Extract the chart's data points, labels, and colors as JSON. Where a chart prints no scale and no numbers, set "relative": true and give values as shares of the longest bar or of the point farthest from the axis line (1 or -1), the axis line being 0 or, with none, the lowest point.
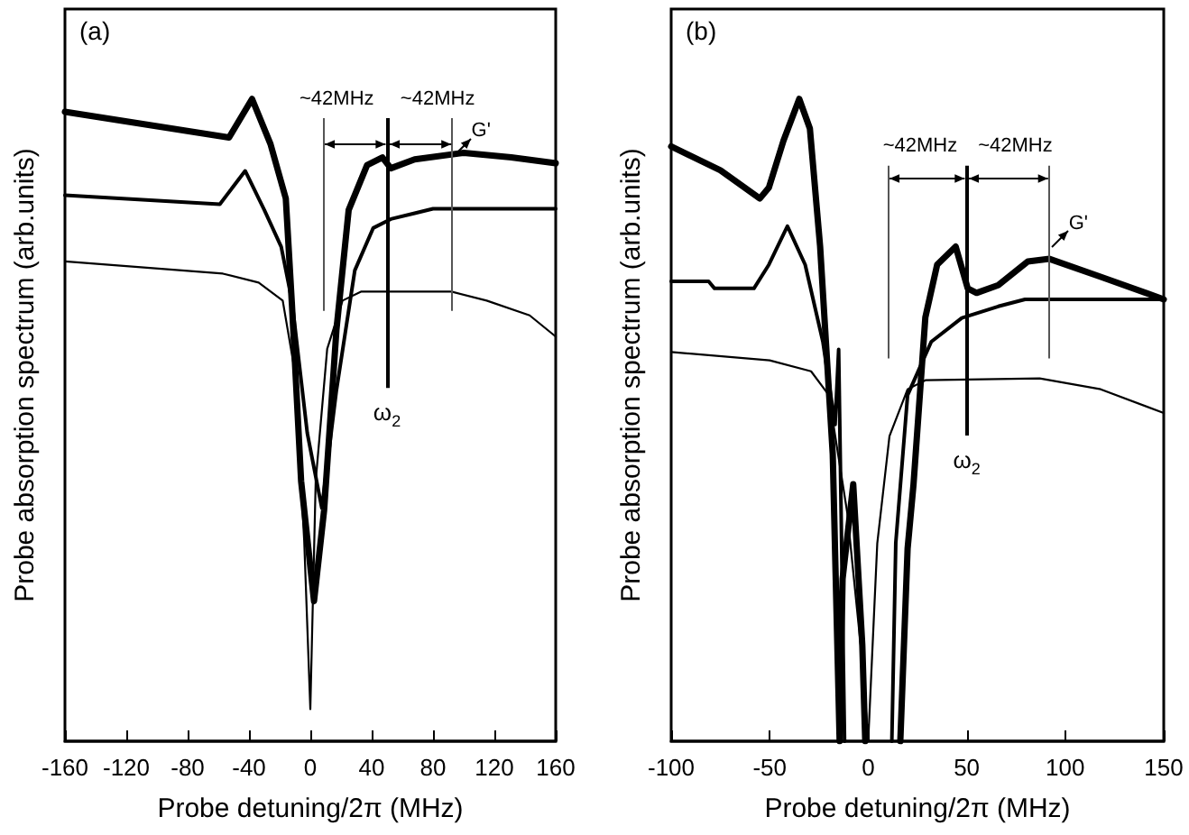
{
  "chart_data": [
    {
      "type": "line",
      "title": "(a)",
      "xlabel": "Probe detuning/2π (MHz)",
      "ylabel": "Probe absorption spectrum (arb.units)",
      "relative": true,
      "xlim": [
        -160,
        160
      ],
      "xticks": [
        -160,
        -120,
        -80,
        -40,
        0,
        40,
        80,
        120,
        160
      ],
      "grid": false,
      "marker": "none",
      "line_style": "solid",
      "series": [
        {
          "color": "#000000",
          "x": [
            -160,
            -53,
            -38,
            -26,
            -16,
            -12,
            -6,
            2.4,
            9,
            17,
            25,
            37,
            47,
            52.5,
            68,
            100,
            131,
            160
          ],
          "values": [
            0.98,
            0.94,
            1.0,
            0.93,
            0.845,
            0.68,
            0.405,
            0.218,
            0.36,
            0.64,
            0.827,
            0.897,
            0.909,
            0.892,
            0.906,
            0.916,
            0.909,
            0.9
          ]
        },
        {
          "color": "#000000",
          "x": [
            -160,
            -59,
            -42.5,
            -30,
            -19,
            -12,
            -2,
            7.5,
            17,
            29,
            41,
            52.5,
            68,
            80,
            160
          ],
          "values": [
            0.85,
            0.836,
            0.888,
            0.827,
            0.77,
            0.686,
            0.48,
            0.363,
            0.546,
            0.733,
            0.799,
            0.813,
            0.822,
            0.829,
            0.829
          ]
        },
        {
          "color": "#000000",
          "x": [
            -160,
            -57,
            -33.7,
            -18,
            -10,
            -4,
            0,
            3.5,
            11,
            21,
            33,
            92,
            115,
            143,
            160
          ],
          "values": [
            0.747,
            0.728,
            0.714,
            0.686,
            0.574,
            0.312,
            0.05,
            0.405,
            0.611,
            0.686,
            0.7,
            0.7,
            0.686,
            0.663,
            0.63
          ]
        }
      ],
      "ref_lines": [
        {
          "axis": "x",
          "value": 8,
          "label": null,
          "color": "#555555"
        },
        {
          "axis": "x",
          "value": 50,
          "label": "ω$_{2}$",
          "color": "#000000"
        },
        {
          "axis": "x",
          "value": 92.5,
          "label": null,
          "color": "#555555"
        }
      ],
      "annotations": [
        "~42MHz",
        "~42MHz",
        "G'"
      ]
    },
    {
      "type": "line",
      "title": "(b)",
      "xlabel": "Probe detuning/2π (MHz)",
      "ylabel": "Probe absorption spectrum (arb.units)",
      "relative": true,
      "xlim": [
        -100,
        150
      ],
      "xticks": [
        -100,
        -50,
        0,
        50,
        100,
        150
      ],
      "grid": false,
      "marker": "none",
      "line_style": "solid",
      "series": [
        {
          "color": "#000000",
          "x": [
            -100,
            -75,
            -55,
            -50.4,
            -43,
            -35,
            -29.6,
            -24.4,
            -18,
            -14.5,
            -13,
            -7.6,
            -3,
            -1.5,
            8,
            16.3,
            20,
            23,
            29,
            35,
            44.4,
            50.5,
            55,
            66,
            81,
            92,
            118,
            150
          ],
          "values": [
            0.926,
            0.889,
            0.845,
            0.862,
            0.935,
            1.0,
            0.954,
            0.77,
            0.447,
            0,
            0.253,
            0.4,
            0.15,
            0,
            null,
            0,
            0.3,
            0.4,
            0.66,
            0.742,
            0.77,
            0.705,
            0.698,
            0.71,
            0.747,
            0.751,
            0.723,
            0.688
          ]
        },
        {
          "color": "#000000",
          "x": [
            -100,
            -81,
            -78,
            -58,
            -50.4,
            -41,
            -32,
            -23,
            -16.8,
            -15,
            -12,
            5,
            12,
            14,
            20,
            32,
            47.5,
            66,
            79.6,
            150
          ],
          "values": [
            0.716,
            0.716,
            0.705,
            0.705,
            0.742,
            0.802,
            0.742,
            0.622,
            0.493,
            0.61,
            0,
            null,
            0,
            0.309,
            0.539,
            0.622,
            0.659,
            0.677,
            0.688,
            0.688
          ]
        },
        {
          "color": "#000000",
          "x": [
            -100,
            -50,
            -29,
            -20,
            -10.6,
            -3,
            0,
            4.6,
            10.8,
            20,
            29,
            87,
            118,
            150
          ],
          "values": [
            0.606,
            0.593,
            0.576,
            0.539,
            0.355,
            0.124,
            0,
            0.308,
            0.475,
            0.548,
            0.562,
            0.565,
            0.548,
            0.511
          ]
        }
      ],
      "ref_lines": [
        {
          "axis": "x",
          "value": 10,
          "label": null,
          "color": "#555555"
        },
        {
          "axis": "x",
          "value": 50,
          "label": "ω$_{2}$",
          "color": "#000000"
        },
        {
          "axis": "x",
          "value": 92,
          "label": null,
          "color": "#555555"
        }
      ],
      "annotations": [
        "~42MHz",
        "~42MHz",
        "G'"
      ]
    }
  ]
}
